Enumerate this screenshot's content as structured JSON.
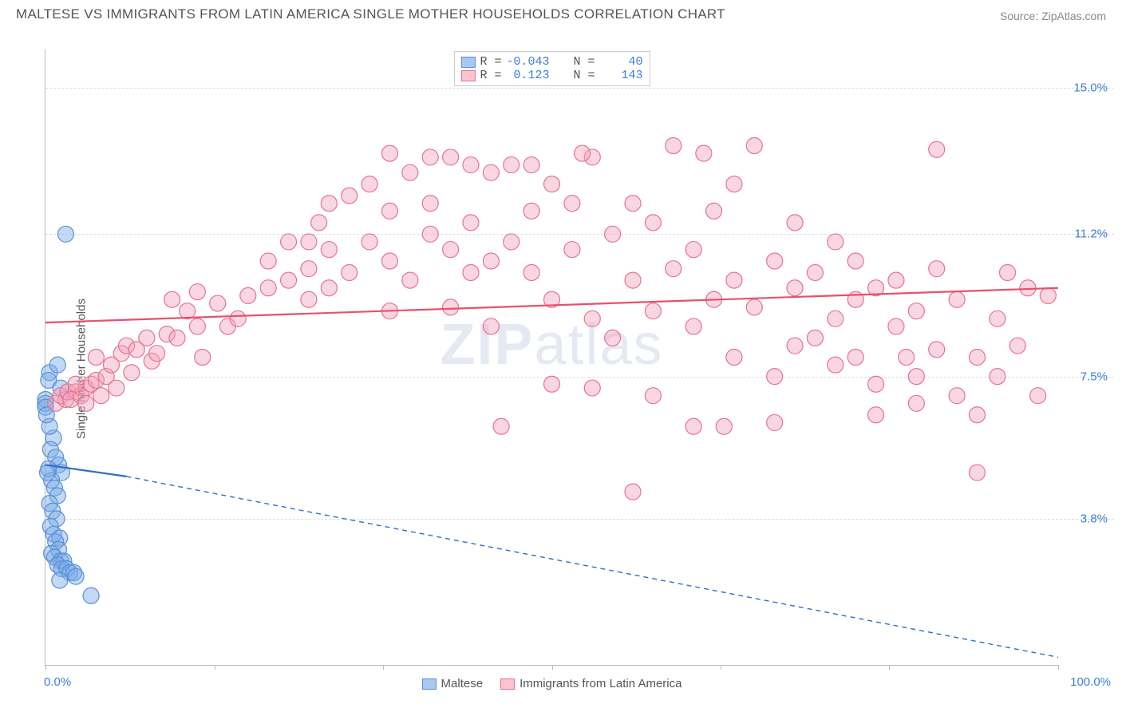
{
  "header": {
    "title": "MALTESE VS IMMIGRANTS FROM LATIN AMERICA SINGLE MOTHER HOUSEHOLDS CORRELATION CHART",
    "source_prefix": "Source: ",
    "source_link": "ZipAtlas.com"
  },
  "chart": {
    "type": "scatter",
    "ylabel": "Single Mother Households",
    "watermark_a": "ZIP",
    "watermark_b": "atlas",
    "background_color": "#ffffff",
    "grid_color": "#dddddd",
    "axis_color": "#bbbbbb",
    "tick_label_color": "#3b7dd8",
    "x_range": [
      0,
      100
    ],
    "y_range": [
      0,
      16
    ],
    "x_ticks": [
      0,
      16.67,
      33.33,
      50,
      66.67,
      83.33,
      100
    ],
    "x_tick_labels": {
      "0": "0.0%",
      "100": "100.0%"
    },
    "y_grid": [
      {
        "v": 3.8,
        "label": "3.8%"
      },
      {
        "v": 7.5,
        "label": "7.5%"
      },
      {
        "v": 11.2,
        "label": "11.2%"
      },
      {
        "v": 15.0,
        "label": "15.0%"
      }
    ],
    "marker_radius": 10,
    "marker_stroke_width": 1.2,
    "trend_line_width": 2.2,
    "trend_dash_width": 1.4,
    "trend_dash_pattern": "6 5",
    "legend_top": [
      {
        "swatch_fill": "#a8c8f0",
        "swatch_border": "#5a8fd6",
        "r": "-0.043",
        "n": "40"
      },
      {
        "swatch_fill": "#f7c4d0",
        "swatch_border": "#e8718f",
        "r": "0.123",
        "n": "143"
      }
    ],
    "legend_top_labels": {
      "r": "R =",
      "n": "N ="
    },
    "legend_bottom": [
      {
        "swatch_fill": "#a8c8f0",
        "swatch_border": "#5a8fd6",
        "label": "Maltese"
      },
      {
        "swatch_fill": "#f7c4d0",
        "swatch_border": "#e8718f",
        "label": "Immigrants from Latin America"
      }
    ],
    "series": [
      {
        "name": "maltese",
        "fill": "rgba(120,170,230,0.45)",
        "stroke": "#5a8fd6",
        "trend_color": "#2f6fc4",
        "trend_segment": {
          "x1": 0,
          "y1": 5.2,
          "x2": 8,
          "y2": 4.9
        },
        "trend_dash": {
          "x1": 8,
          "y1": 4.9,
          "x2": 100,
          "y2": 0.2
        },
        "points": [
          [
            0,
            6.9
          ],
          [
            0,
            6.8
          ],
          [
            0,
            6.7
          ],
          [
            0.4,
            7.6
          ],
          [
            0.3,
            7.4
          ],
          [
            1.2,
            7.8
          ],
          [
            1.5,
            7.2
          ],
          [
            2.0,
            11.2
          ],
          [
            0.8,
            5.9
          ],
          [
            0.5,
            5.6
          ],
          [
            1.0,
            5.4
          ],
          [
            1.3,
            5.2
          ],
          [
            1.6,
            5.0
          ],
          [
            0.6,
            4.8
          ],
          [
            0.9,
            4.6
          ],
          [
            1.2,
            4.4
          ],
          [
            0.4,
            4.2
          ],
          [
            0.7,
            4.0
          ],
          [
            1.1,
            3.8
          ],
          [
            0.5,
            3.6
          ],
          [
            0.8,
            3.4
          ],
          [
            1.4,
            3.3
          ],
          [
            1.0,
            3.2
          ],
          [
            1.3,
            3.0
          ],
          [
            0.6,
            2.9
          ],
          [
            0.9,
            2.8
          ],
          [
            1.5,
            2.7
          ],
          [
            1.8,
            2.7
          ],
          [
            1.2,
            2.6
          ],
          [
            1.6,
            2.5
          ],
          [
            2.1,
            2.5
          ],
          [
            2.4,
            2.4
          ],
          [
            2.8,
            2.4
          ],
          [
            3.0,
            2.3
          ],
          [
            1.4,
            2.2
          ],
          [
            4.5,
            1.8
          ],
          [
            0.3,
            5.1
          ],
          [
            0.2,
            5.0
          ],
          [
            0.4,
            6.2
          ],
          [
            0.1,
            6.5
          ]
        ]
      },
      {
        "name": "latin",
        "fill": "rgba(240,160,185,0.42)",
        "stroke": "#e8718f",
        "trend_color": "#e8506f",
        "trend_segment": {
          "x1": 0,
          "y1": 8.9,
          "x2": 100,
          "y2": 9.8
        },
        "trend_dash": null,
        "points": [
          [
            1,
            6.8
          ],
          [
            2,
            6.9
          ],
          [
            1.5,
            7.0
          ],
          [
            2.2,
            7.1
          ],
          [
            3,
            7.1
          ],
          [
            2.5,
            6.9
          ],
          [
            3.5,
            7.0
          ],
          [
            4,
            7.2
          ],
          [
            3,
            7.3
          ],
          [
            4.5,
            7.3
          ],
          [
            5,
            7.4
          ],
          [
            4,
            6.8
          ],
          [
            5.5,
            7.0
          ],
          [
            6,
            7.5
          ],
          [
            5,
            8.0
          ],
          [
            6.5,
            7.8
          ],
          [
            7,
            7.2
          ],
          [
            7.5,
            8.1
          ],
          [
            8,
            8.3
          ],
          [
            9,
            8.2
          ],
          [
            8.5,
            7.6
          ],
          [
            10,
            8.5
          ],
          [
            10.5,
            7.9
          ],
          [
            11,
            8.1
          ],
          [
            12,
            8.6
          ],
          [
            12.5,
            9.5
          ],
          [
            13,
            8.5
          ],
          [
            14,
            9.2
          ],
          [
            15,
            8.8
          ],
          [
            15.5,
            8.0
          ],
          [
            17,
            9.4
          ],
          [
            18,
            8.8
          ],
          [
            19,
            9.0
          ],
          [
            20,
            9.6
          ],
          [
            22,
            9.8
          ],
          [
            22,
            10.5
          ],
          [
            24,
            10.0
          ],
          [
            24,
            11.0
          ],
          [
            26,
            9.5
          ],
          [
            26,
            10.3
          ],
          [
            27,
            11.5
          ],
          [
            28,
            10.8
          ],
          [
            28,
            9.8
          ],
          [
            30,
            10.2
          ],
          [
            30,
            12.2
          ],
          [
            32,
            11.0
          ],
          [
            32,
            12.5
          ],
          [
            34,
            10.5
          ],
          [
            34,
            11.8
          ],
          [
            34,
            9.2
          ],
          [
            36,
            12.8
          ],
          [
            36,
            10.0
          ],
          [
            38,
            11.2
          ],
          [
            38,
            12.0
          ],
          [
            40,
            10.8
          ],
          [
            40,
            9.3
          ],
          [
            40,
            13.2
          ],
          [
            42,
            11.5
          ],
          [
            42,
            10.2
          ],
          [
            44,
            12.8
          ],
          [
            44,
            10.5
          ],
          [
            44,
            8.8
          ],
          [
            46,
            11.0
          ],
          [
            46,
            13.0
          ],
          [
            48,
            10.2
          ],
          [
            48,
            11.8
          ],
          [
            50,
            12.5
          ],
          [
            50,
            9.5
          ],
          [
            50,
            7.3
          ],
          [
            52,
            10.8
          ],
          [
            52,
            12.0
          ],
          [
            54,
            13.2
          ],
          [
            54,
            9.0
          ],
          [
            54,
            7.2
          ],
          [
            56,
            11.2
          ],
          [
            56,
            8.5
          ],
          [
            58,
            10.0
          ],
          [
            58,
            12.0
          ],
          [
            58,
            4.5
          ],
          [
            60,
            9.2
          ],
          [
            60,
            11.5
          ],
          [
            60,
            7.0
          ],
          [
            62,
            10.3
          ],
          [
            62,
            13.5
          ],
          [
            64,
            8.8
          ],
          [
            64,
            10.8
          ],
          [
            64,
            6.2
          ],
          [
            66,
            11.8
          ],
          [
            66,
            9.5
          ],
          [
            68,
            10.0
          ],
          [
            68,
            8.0
          ],
          [
            68,
            12.5
          ],
          [
            70,
            9.3
          ],
          [
            70,
            13.5
          ],
          [
            72,
            10.5
          ],
          [
            72,
            7.5
          ],
          [
            72,
            6.3
          ],
          [
            74,
            9.8
          ],
          [
            74,
            11.5
          ],
          [
            76,
            8.5
          ],
          [
            76,
            10.2
          ],
          [
            78,
            9.0
          ],
          [
            78,
            7.8
          ],
          [
            78,
            11.0
          ],
          [
            80,
            9.5
          ],
          [
            80,
            8.0
          ],
          [
            80,
            10.5
          ],
          [
            82,
            7.3
          ],
          [
            82,
            9.8
          ],
          [
            82,
            6.5
          ],
          [
            84,
            8.8
          ],
          [
            84,
            10.0
          ],
          [
            86,
            7.5
          ],
          [
            86,
            9.2
          ],
          [
            86,
            6.8
          ],
          [
            88,
            8.2
          ],
          [
            88,
            10.3
          ],
          [
            90,
            7.0
          ],
          [
            90,
            9.5
          ],
          [
            92,
            8.0
          ],
          [
            92,
            6.5
          ],
          [
            94,
            9.0
          ],
          [
            94,
            7.5
          ],
          [
            96,
            8.3
          ],
          [
            98,
            7.0
          ],
          [
            92,
            5.0
          ],
          [
            38,
            13.2
          ],
          [
            42,
            13.0
          ],
          [
            34,
            13.3
          ],
          [
            28,
            12.0
          ],
          [
            26,
            11.0
          ],
          [
            99,
            9.6
          ],
          [
            95,
            10.2
          ],
          [
            88,
            13.4
          ],
          [
            65,
            13.3
          ],
          [
            48,
            13.0
          ],
          [
            53,
            13.3
          ],
          [
            74,
            8.3
          ],
          [
            67,
            6.2
          ],
          [
            85,
            8.0
          ],
          [
            45,
            6.2
          ],
          [
            97,
            9.8
          ],
          [
            15,
            9.7
          ]
        ]
      }
    ]
  }
}
